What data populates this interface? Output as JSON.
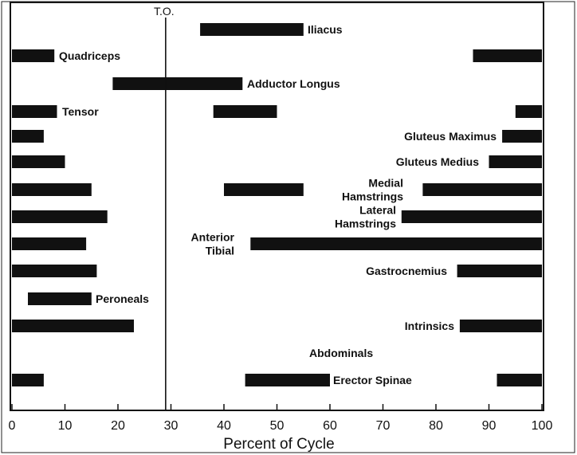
{
  "chart_data": {
    "type": "gantt",
    "title": "",
    "xlabel": "Percent of Cycle",
    "ylabel": "",
    "xlim": [
      0,
      100
    ],
    "x_ticks": [
      "0",
      "10",
      "20",
      "30",
      "40",
      "50",
      "60",
      "70",
      "80",
      "90",
      "100"
    ],
    "reference_line": {
      "label": "T.O.",
      "x": 29
    },
    "rows": [
      {
        "muscle": "Iliacus",
        "label_lines": [
          "Iliacus"
        ],
        "segments": [
          [
            35.5,
            55
          ]
        ]
      },
      {
        "muscle": "Quadriceps",
        "label_lines": [
          "Quadriceps"
        ],
        "segments": [
          [
            0,
            8
          ],
          [
            87,
            100
          ]
        ]
      },
      {
        "muscle": "Adductor Longus",
        "label_lines": [
          "Adductor Longus"
        ],
        "segments": [
          [
            19,
            43.5
          ]
        ]
      },
      {
        "muscle": "Tensor",
        "label_lines": [
          "Tensor"
        ],
        "segments": [
          [
            0,
            8.5
          ],
          [
            38,
            50
          ],
          [
            95,
            100
          ]
        ]
      },
      {
        "muscle": "Gluteus Maximus",
        "label_lines": [
          "Gluteus Maximus"
        ],
        "segments": [
          [
            0,
            6
          ],
          [
            92.5,
            100
          ]
        ]
      },
      {
        "muscle": "Gluteus Medius",
        "label_lines": [
          "Gluteus Medius"
        ],
        "segments": [
          [
            0,
            10
          ],
          [
            90,
            100
          ]
        ]
      },
      {
        "muscle": "Medial Hamstrings",
        "label_lines": [
          "Medial",
          "Hamstrings"
        ],
        "segments": [
          [
            0,
            15
          ],
          [
            40,
            55
          ],
          [
            77.5,
            100
          ]
        ]
      },
      {
        "muscle": "Lateral Hamstrings",
        "label_lines": [
          "Lateral",
          "Hamstrings"
        ],
        "segments": [
          [
            0,
            18
          ],
          [
            73.5,
            100
          ]
        ]
      },
      {
        "muscle": "Anterior Tibial",
        "label_lines": [
          "Anterior",
          "Tibial"
        ],
        "segments": [
          [
            0,
            14
          ],
          [
            45,
            100
          ]
        ]
      },
      {
        "muscle": "Gastrocnemius",
        "label_lines": [
          "Gastrocnemius"
        ],
        "segments": [
          [
            0,
            16
          ],
          [
            84,
            100
          ]
        ]
      },
      {
        "muscle": "Peroneals",
        "label_lines": [
          "Peroneals"
        ],
        "segments": [
          [
            3,
            15
          ]
        ]
      },
      {
        "muscle": "Intrinsics",
        "label_lines": [
          "Intrinsics"
        ],
        "segments": [
          [
            0,
            23
          ],
          [
            84.5,
            100
          ]
        ]
      },
      {
        "muscle": "Abdominals",
        "label_lines": [
          "Abdominals"
        ],
        "segments": []
      },
      {
        "muscle": "Erector Spinae",
        "label_lines": [
          "Erector Spinae"
        ],
        "segments": [
          [
            0,
            6
          ],
          [
            44,
            60
          ],
          [
            91.5,
            100
          ]
        ]
      }
    ],
    "colors": {
      "bar": "#111111",
      "axis": "#111111",
      "background": "#ffffff"
    }
  }
}
